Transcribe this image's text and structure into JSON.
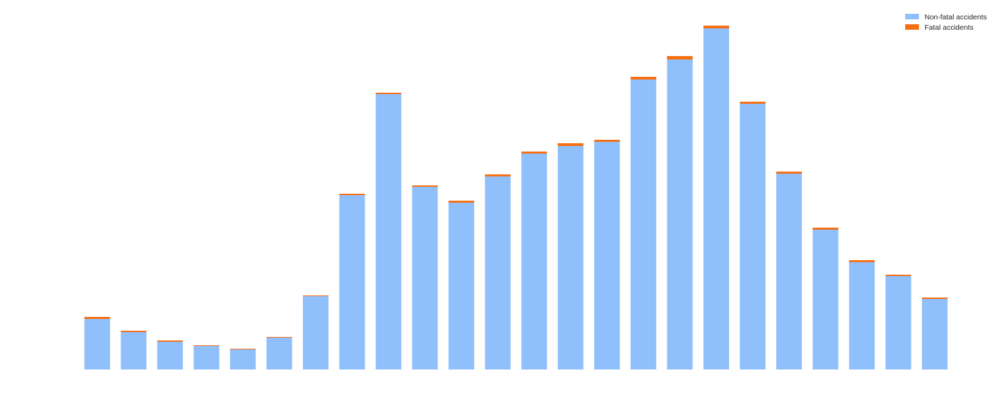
{
  "chart_data": {
    "type": "bar",
    "stacked": true,
    "title": "",
    "xlabel": "",
    "ylabel": "",
    "grid": false,
    "legend_position": "top-right",
    "x_axis_visible": false,
    "y_axis_visible": false,
    "ylim": [
      0,
      500
    ],
    "series": [
      {
        "name": "Non-fatal accidents",
        "color": "#90c0fc",
        "values": [
          73,
          54,
          40,
          34,
          29,
          46,
          106,
          252,
          398,
          264,
          241,
          279,
          312,
          323,
          329,
          419,
          448,
          493,
          384,
          283,
          202,
          155,
          135,
          102
        ]
      },
      {
        "name": "Fatal accidents",
        "color": "#f76f14",
        "values": [
          3,
          2,
          2,
          1,
          1,
          1,
          1,
          2,
          2,
          2,
          3,
          3,
          3,
          4,
          3,
          4,
          5,
          4,
          3,
          3,
          3,
          3,
          2,
          2
        ]
      }
    ]
  }
}
